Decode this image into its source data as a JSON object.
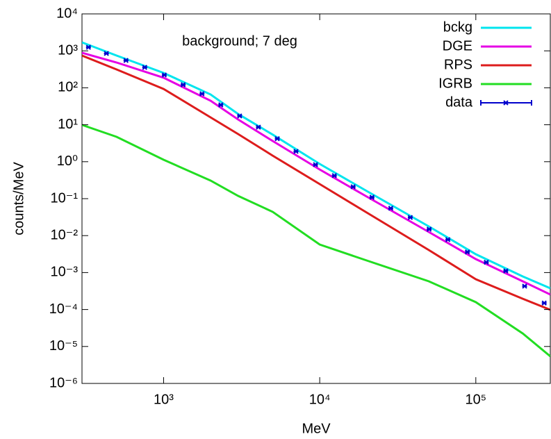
{
  "chart_data": {
    "type": "line",
    "annotation": "background; 7 deg",
    "x_label": "MeV",
    "y_label": "counts/MeV",
    "log_x": true,
    "log_y": true,
    "legend": "upper right",
    "xlim": [
      300,
      300000
    ],
    "ylim": [
      1e-06,
      10000
    ],
    "xticks": [
      {
        "value": 1000,
        "label": "10³"
      },
      {
        "value": 10000,
        "label": "10⁴"
      },
      {
        "value": 100000,
        "label": "10⁵"
      }
    ],
    "yticks": [
      {
        "value": 1e-06,
        "label": "10⁻⁶"
      },
      {
        "value": 1e-05,
        "label": "10⁻⁵"
      },
      {
        "value": 0.0001,
        "label": "10⁻⁴"
      },
      {
        "value": 0.001,
        "label": "10⁻³"
      },
      {
        "value": 0.01,
        "label": "10⁻²"
      },
      {
        "value": 0.1,
        "label": "10⁻¹"
      },
      {
        "value": 1,
        "label": "10⁰"
      },
      {
        "value": 10,
        "label": "10¹"
      },
      {
        "value": 100,
        "label": "10²"
      },
      {
        "value": 1000,
        "label": "10³"
      },
      {
        "value": 10000,
        "label": "10⁴"
      }
    ],
    "series": [
      {
        "name": "bckg",
        "color": "#00e5ee",
        "style": "line",
        "x": [
          300,
          500,
          1000,
          2000,
          3000,
          5000,
          10000,
          20000,
          50000,
          100000,
          200000,
          300000
        ],
        "values": [
          1695,
          745,
          252,
          66,
          19.6,
          5.4,
          0.87,
          0.161,
          0.0177,
          0.00313,
          0.000785,
          0.000376
        ]
      },
      {
        "name": "DGE",
        "color": "#e500e5",
        "style": "line",
        "x": [
          300,
          500,
          1000,
          2000,
          3000,
          5000,
          10000,
          20000,
          50000,
          100000,
          200000,
          300000
        ],
        "values": [
          885,
          483,
          187,
          44.7,
          13.9,
          3.63,
          0.615,
          0.114,
          0.0125,
          0.00232,
          0.00058,
          0.000255
        ]
      },
      {
        "name": "RPS",
        "color": "#dd1c1c",
        "style": "line",
        "x": [
          300,
          500,
          1000,
          2000,
          3000,
          5000,
          10000,
          20000,
          50000,
          100000,
          200000,
          300000
        ],
        "values": [
          745,
          313,
          93,
          15.8,
          5.6,
          1.46,
          0.248,
          0.042,
          0.00406,
          0.00066,
          0.000196,
          9.81e-05
        ]
      },
      {
        "name": "IGRB",
        "color": "#22dd22",
        "style": "line",
        "x": [
          300,
          500,
          1000,
          2000,
          3000,
          5000,
          10000,
          20000,
          50000,
          100000,
          200000,
          300000
        ],
        "values": [
          9.9,
          4.71,
          1.13,
          0.308,
          0.119,
          0.044,
          0.00574,
          0.00212,
          0.00058,
          0.000158,
          2.25e-05,
          5.4e-06
        ]
      },
      {
        "name": "data",
        "color": "#0000cc",
        "style": "points",
        "x": [
          330,
          430,
          574,
          757,
          1010,
          1334,
          1762,
          2324,
          3069,
          4048,
          5346,
          7047,
          9397,
          12410,
          16370,
          21620,
          28510,
          38020,
          50230,
          66220,
          88310,
          116700,
          155600,
          205400,
          274200
        ],
        "values": [
          1250,
          850,
          550,
          357,
          222,
          121,
          69,
          34.5,
          17.3,
          8.6,
          4.2,
          1.9,
          0.83,
          0.42,
          0.21,
          0.109,
          0.055,
          0.031,
          0.0149,
          0.0078,
          0.0036,
          0.0019,
          0.00111,
          0.00043,
          0.00015
        ]
      }
    ]
  }
}
